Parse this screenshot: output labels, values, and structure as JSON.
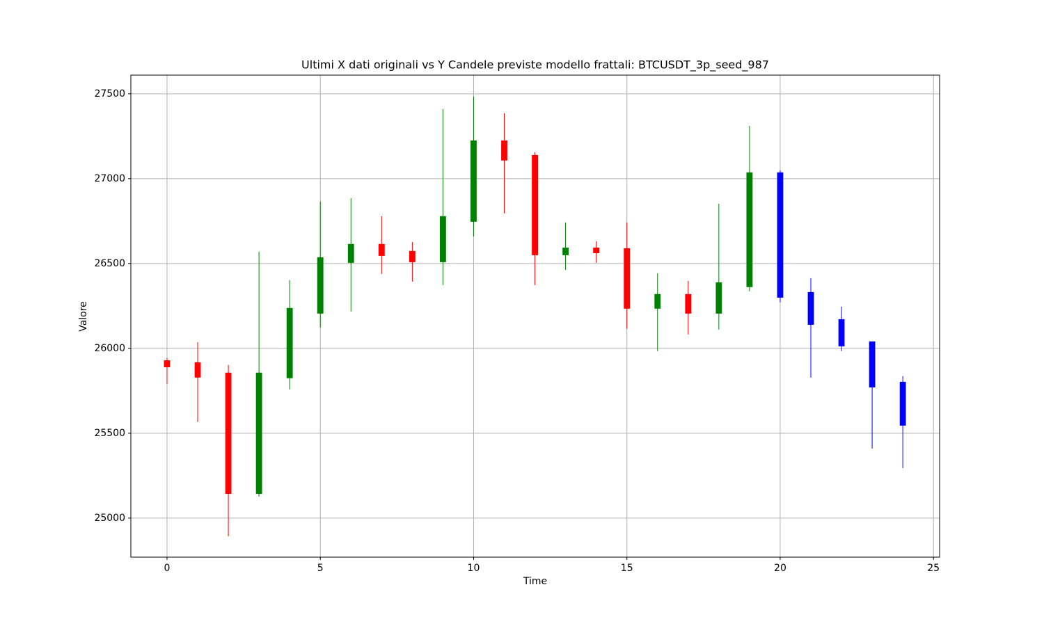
{
  "chart_data": {
    "type": "candlestick",
    "title": "Ultimi X dati originali vs Y Candele previste modello frattali: BTCUSDT_3p_seed_987",
    "xlabel": "Time",
    "ylabel": "Valore",
    "x": [
      0,
      1,
      2,
      3,
      4,
      5,
      6,
      7,
      8,
      9,
      10,
      11,
      12,
      13,
      14,
      15,
      16,
      17,
      18,
      19,
      20,
      21,
      22,
      23,
      24
    ],
    "open": [
      25930,
      25918,
      25857,
      25143,
      25824,
      26205,
      26504,
      26615,
      26574,
      26508,
      26746,
      27225,
      27139,
      26549,
      26594,
      26590,
      26234,
      26320,
      26205,
      26361,
      27037,
      26332,
      26172,
      26041,
      25803
    ],
    "high": [
      25943,
      26037,
      25902,
      26570,
      26402,
      26865,
      26885,
      26779,
      26627,
      27410,
      27484,
      27385,
      27156,
      26742,
      26631,
      26742,
      26443,
      26398,
      26852,
      27311,
      27049,
      26414,
      26246,
      26041,
      25836
    ],
    "low": [
      25791,
      25566,
      24893,
      25127,
      25758,
      26123,
      26217,
      26439,
      26393,
      26373,
      26660,
      26795,
      26373,
      26463,
      26504,
      26115,
      25984,
      26082,
      26111,
      26336,
      26271,
      25828,
      25984,
      25410,
      25295
    ],
    "close": [
      25889,
      25828,
      25143,
      25857,
      26238,
      26537,
      26615,
      26545,
      26508,
      26779,
      27225,
      27107,
      26549,
      26594,
      26561,
      26234,
      26320,
      26205,
      26389,
      27037,
      26299,
      26139,
      26012,
      25770,
      25545
    ],
    "colors": [
      "red",
      "red",
      "red",
      "green",
      "green",
      "green",
      "green",
      "red",
      "red",
      "green",
      "green",
      "red",
      "red",
      "green",
      "red",
      "red",
      "green",
      "red",
      "green",
      "green",
      "blue",
      "blue",
      "blue",
      "blue",
      "blue"
    ],
    "xlim": [
      -1.18,
      25.2
    ],
    "ylim": [
      24770,
      27610
    ],
    "xticks": [
      0,
      5,
      10,
      15,
      20,
      25
    ],
    "yticks": [
      25000,
      25500,
      26000,
      26500,
      27000,
      27500
    ],
    "grid": true
  }
}
